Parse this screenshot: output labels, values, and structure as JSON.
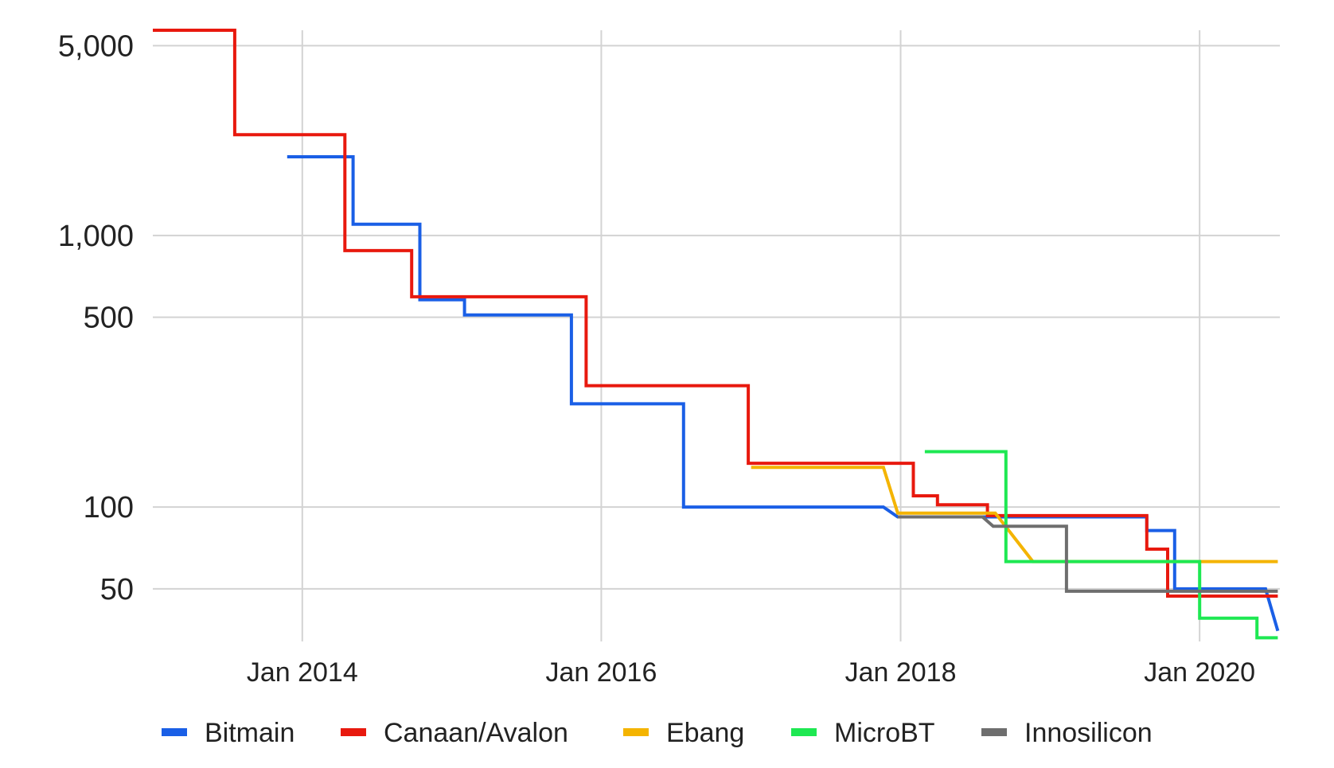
{
  "chart_data": {
    "type": "line",
    "step": true,
    "title": "",
    "xlabel": "",
    "ylabel": "",
    "y_scale": "log",
    "ylim": [
      32,
      5700
    ],
    "xlim": [
      "2013-01-01",
      "2020-07-15"
    ],
    "yticks": [
      {
        "value": 5000,
        "label": "5,000"
      },
      {
        "value": 1000,
        "label": "1,000"
      },
      {
        "value": 500,
        "label": "500"
      },
      {
        "value": 100,
        "label": "100"
      },
      {
        "value": 50,
        "label": "50"
      }
    ],
    "xticks": [
      {
        "value": "2014-01-01",
        "label": "Jan 2014"
      },
      {
        "value": "2016-01-01",
        "label": "Jan 2016"
      },
      {
        "value": "2018-01-01",
        "label": "Jan 2018"
      },
      {
        "value": "2020-01-01",
        "label": "Jan 2020"
      }
    ],
    "grid": true,
    "legend_position": "bottom",
    "series": [
      {
        "name": "Bitmain",
        "color": "#1a5fe6",
        "points": [
          [
            "2013-11-25",
            1950
          ],
          [
            "2014-05-05",
            1950
          ],
          [
            "2014-05-05",
            1100
          ],
          [
            "2014-10-15",
            1100
          ],
          [
            "2014-10-15",
            580
          ],
          [
            "2015-02-01",
            580
          ],
          [
            "2015-02-01",
            510
          ],
          [
            "2015-10-20",
            510
          ],
          [
            "2015-10-20",
            240
          ],
          [
            "2016-07-20",
            240
          ],
          [
            "2016-07-20",
            100
          ],
          [
            "2017-11-20",
            100
          ],
          [
            "2017-12-25",
            92
          ],
          [
            "2018-07-20",
            92
          ],
          [
            "2018-09-01",
            92
          ],
          [
            "2019-08-25",
            92
          ],
          [
            "2019-08-25",
            82
          ],
          [
            "2019-11-01",
            82
          ],
          [
            "2019-11-01",
            50
          ],
          [
            "2020-06-10",
            50
          ],
          [
            "2020-06-10",
            50
          ],
          [
            "2020-07-10",
            35
          ]
        ]
      },
      {
        "name": "Canaan/Avalon",
        "color": "#e8190e",
        "points": [
          [
            "2013-01-01",
            5700
          ],
          [
            "2013-07-20",
            5700
          ],
          [
            "2013-07-20",
            2350
          ],
          [
            "2014-04-15",
            2350
          ],
          [
            "2014-04-15",
            880
          ],
          [
            "2014-09-25",
            880
          ],
          [
            "2014-09-25",
            595
          ],
          [
            "2015-11-25",
            595
          ],
          [
            "2015-11-25",
            280
          ],
          [
            "2016-12-25",
            280
          ],
          [
            "2016-12-25",
            145
          ],
          [
            "2018-02-01",
            145
          ],
          [
            "2018-02-01",
            110
          ],
          [
            "2018-04-01",
            110
          ],
          [
            "2018-04-01",
            102
          ],
          [
            "2018-08-01",
            102
          ],
          [
            "2018-08-01",
            93
          ],
          [
            "2019-08-25",
            93
          ],
          [
            "2019-08-25",
            70
          ],
          [
            "2019-10-15",
            70
          ],
          [
            "2019-10-15",
            47
          ],
          [
            "2020-07-10",
            47
          ]
        ]
      },
      {
        "name": "Ebang",
        "color": "#f4b400",
        "points": [
          [
            "2017-01-01",
            140
          ],
          [
            "2017-11-20",
            140
          ],
          [
            "2017-12-25",
            95
          ],
          [
            "2018-08-20",
            95
          ],
          [
            "2018-11-20",
            63
          ],
          [
            "2020-07-10",
            63
          ]
        ]
      },
      {
        "name": "MicroBT",
        "color": "#1ee852",
        "points": [
          [
            "2018-03-01",
            160
          ],
          [
            "2018-09-15",
            160
          ],
          [
            "2018-09-15",
            63
          ],
          [
            "2020-01-01",
            63
          ],
          [
            "2020-01-01",
            39
          ],
          [
            "2020-05-20",
            39
          ],
          [
            "2020-05-20",
            33
          ],
          [
            "2020-07-10",
            33
          ]
        ]
      },
      {
        "name": "Innosilicon",
        "color": "#6e6e6e",
        "points": [
          [
            "2017-12-25",
            92
          ],
          [
            "2018-07-20",
            92
          ],
          [
            "2018-08-15",
            85
          ],
          [
            "2019-02-10",
            85
          ],
          [
            "2019-02-10",
            49
          ],
          [
            "2020-07-10",
            49
          ]
        ]
      }
    ]
  }
}
